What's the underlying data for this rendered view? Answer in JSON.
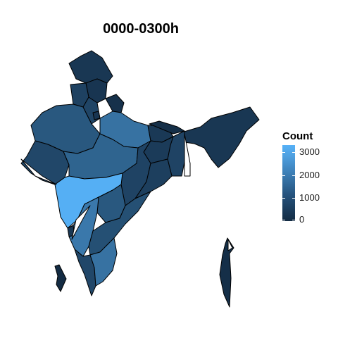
{
  "title": "0000-0300h",
  "legend": {
    "title": "Count",
    "ticks": [
      "3000",
      "2000",
      "1000",
      "0"
    ],
    "tick_values": [
      3000,
      2000,
      1000,
      0
    ],
    "min": 0,
    "max": 3300,
    "color_low": "#132b43",
    "color_high": "#56b1f7"
  },
  "map": {
    "regions": [
      {
        "name": "Jammu and Kashmir",
        "value": 300
      },
      {
        "name": "Himachal Pradesh",
        "value": 250
      },
      {
        "name": "Punjab",
        "value": 550
      },
      {
        "name": "Uttarakhand",
        "value": 150
      },
      {
        "name": "Haryana",
        "value": 650
      },
      {
        "name": "Delhi",
        "value": 250
      },
      {
        "name": "Rajasthan",
        "value": 1100
      },
      {
        "name": "Uttar Pradesh",
        "value": 1750
      },
      {
        "name": "Bihar",
        "value": 350
      },
      {
        "name": "Sikkim",
        "value": 100
      },
      {
        "name": "Northeast",
        "value": 300
      },
      {
        "name": "West Bengal",
        "value": 600
      },
      {
        "name": "Jharkhand",
        "value": 400
      },
      {
        "name": "Gujarat",
        "value": 700
      },
      {
        "name": "Madhya Pradesh",
        "value": 1400
      },
      {
        "name": "Chhattisgarh",
        "value": 600
      },
      {
        "name": "Odisha",
        "value": 500
      },
      {
        "name": "Maharashtra",
        "value": 3250
      },
      {
        "name": "Telangana",
        "value": 1100
      },
      {
        "name": "Goa",
        "value": 300
      },
      {
        "name": "Karnataka",
        "value": 1900
      },
      {
        "name": "Andhra Pradesh",
        "value": 900
      },
      {
        "name": "Kerala",
        "value": 700
      },
      {
        "name": "Tamil Nadu",
        "value": 1750
      },
      {
        "name": "Andaman and Nicobar",
        "value": 100
      },
      {
        "name": "Lakshadweep",
        "value": 0
      }
    ]
  }
}
